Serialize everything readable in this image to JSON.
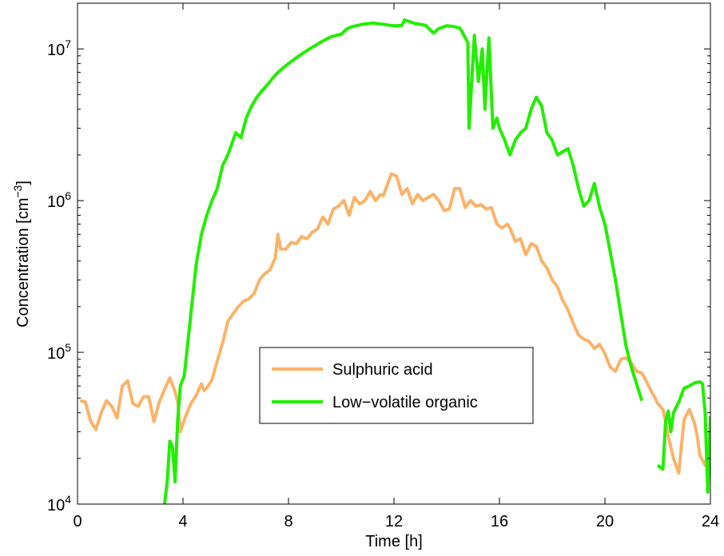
{
  "chart_data": {
    "type": "line",
    "title": "",
    "xlabel": "Time [h]",
    "ylabel_main": "Concentration [cm",
    "ylabel_sup": "−3",
    "ylabel_close": "]",
    "xlim": [
      0,
      24
    ],
    "ylim": [
      10000,
      20000000
    ],
    "yscale": "log",
    "grid": false,
    "legend_position": "center",
    "x_ticks": [
      0,
      4,
      8,
      12,
      16,
      20,
      24
    ],
    "x_tick_labels": [
      "0",
      "4",
      "8",
      "12",
      "16",
      "20",
      "24"
    ],
    "y_ticks": [
      10000,
      100000,
      1000000,
      10000000
    ],
    "y_tick_labels": [
      {
        "base": "10",
        "exp": "4"
      },
      {
        "base": "10",
        "exp": "5"
      },
      {
        "base": "10",
        "exp": "6"
      },
      {
        "base": "10",
        "exp": "7"
      }
    ],
    "series": [
      {
        "name": "Sulphuric acid",
        "color": "#fbb36a",
        "points": [
          [
            0.1,
            48000
          ],
          [
            0.3,
            47000
          ],
          [
            0.5,
            35000
          ],
          [
            0.7,
            31000
          ],
          [
            0.9,
            40000
          ],
          [
            1.1,
            48000
          ],
          [
            1.3,
            44000
          ],
          [
            1.5,
            37000
          ],
          [
            1.7,
            60000
          ],
          [
            1.9,
            65000
          ],
          [
            2.1,
            46000
          ],
          [
            2.3,
            44000
          ],
          [
            2.5,
            51000
          ],
          [
            2.7,
            51000
          ],
          [
            2.9,
            35000
          ],
          [
            3.1,
            47000
          ],
          [
            3.3,
            57000
          ],
          [
            3.5,
            68000
          ],
          [
            3.7,
            55000
          ],
          [
            3.8,
            47000
          ],
          [
            3.9,
            30000
          ],
          [
            4.1,
            38000
          ],
          [
            4.3,
            46000
          ],
          [
            4.5,
            52000
          ],
          [
            4.6,
            57000
          ],
          [
            4.7,
            62000
          ],
          [
            4.8,
            56000
          ],
          [
            4.9,
            58000
          ],
          [
            5.1,
            66000
          ],
          [
            5.3,
            88000
          ],
          [
            5.5,
            115000
          ],
          [
            5.7,
            160000
          ],
          [
            5.9,
            180000
          ],
          [
            6.1,
            200000
          ],
          [
            6.3,
            218000
          ],
          [
            6.5,
            225000
          ],
          [
            6.7,
            245000
          ],
          [
            6.9,
            300000
          ],
          [
            7.1,
            330000
          ],
          [
            7.3,
            350000
          ],
          [
            7.5,
            420000
          ],
          [
            7.6,
            600000
          ],
          [
            7.7,
            480000
          ],
          [
            7.9,
            480000
          ],
          [
            8.1,
            530000
          ],
          [
            8.3,
            520000
          ],
          [
            8.5,
            580000
          ],
          [
            8.7,
            560000
          ],
          [
            8.9,
            620000
          ],
          [
            9.1,
            650000
          ],
          [
            9.3,
            780000
          ],
          [
            9.5,
            700000
          ],
          [
            9.7,
            880000
          ],
          [
            9.9,
            920000
          ],
          [
            10.1,
            1000000
          ],
          [
            10.3,
            800000
          ],
          [
            10.5,
            1050000
          ],
          [
            10.7,
            950000
          ],
          [
            10.9,
            1000000
          ],
          [
            11.1,
            1150000
          ],
          [
            11.3,
            1000000
          ],
          [
            11.5,
            1100000
          ],
          [
            11.6,
            1080000
          ],
          [
            11.9,
            1500000
          ],
          [
            12.1,
            1450000
          ],
          [
            12.3,
            1100000
          ],
          [
            12.5,
            1200000
          ],
          [
            12.7,
            950000
          ],
          [
            12.9,
            1100000
          ],
          [
            13.1,
            1000000
          ],
          [
            13.3,
            1050000
          ],
          [
            13.5,
            1100000
          ],
          [
            13.7,
            1000000
          ],
          [
            13.9,
            860000
          ],
          [
            14.1,
            880000
          ],
          [
            14.3,
            1200000
          ],
          [
            14.5,
            1200000
          ],
          [
            14.7,
            900000
          ],
          [
            14.9,
            1000000
          ],
          [
            15.1,
            920000
          ],
          [
            15.3,
            940000
          ],
          [
            15.5,
            880000
          ],
          [
            15.7,
            900000
          ],
          [
            15.9,
            700000
          ],
          [
            16.1,
            660000
          ],
          [
            16.3,
            700000
          ],
          [
            16.4,
            660000
          ],
          [
            16.6,
            540000
          ],
          [
            16.8,
            560000
          ],
          [
            17.0,
            440000
          ],
          [
            17.2,
            520000
          ],
          [
            17.4,
            500000
          ],
          [
            17.6,
            400000
          ],
          [
            17.8,
            360000
          ],
          [
            18.0,
            300000
          ],
          [
            18.2,
            270000
          ],
          [
            18.4,
            220000
          ],
          [
            18.6,
            190000
          ],
          [
            18.8,
            155000
          ],
          [
            19.0,
            130000
          ],
          [
            19.2,
            122000
          ],
          [
            19.4,
            118000
          ],
          [
            19.6,
            106000
          ],
          [
            19.8,
            113000
          ],
          [
            20.0,
            98000
          ],
          [
            20.2,
            80000
          ],
          [
            20.4,
            75000
          ],
          [
            20.6,
            90000
          ],
          [
            20.8,
            92000
          ],
          [
            21.0,
            85000
          ],
          [
            21.2,
            75000
          ],
          [
            21.4,
            73000
          ],
          [
            21.5,
            68000
          ],
          [
            21.7,
            58000
          ],
          [
            21.9,
            50000
          ],
          [
            22.0,
            46000
          ],
          [
            22.2,
            42000
          ],
          [
            22.3,
            35000
          ],
          [
            22.4,
            28000
          ],
          [
            22.6,
            20000
          ],
          [
            22.8,
            16000
          ],
          [
            23.0,
            36000
          ],
          [
            23.2,
            42000
          ],
          [
            23.4,
            34000
          ],
          [
            23.5,
            28000
          ],
          [
            23.6,
            21000
          ],
          [
            23.8,
            18000
          ],
          [
            23.95,
            24000
          ]
        ]
      },
      {
        "name": "Low−volatile organic",
        "color": "#22ee00",
        "segments": [
          [
            [
              3.3,
              10000
            ],
            [
              3.4,
              14000
            ],
            [
              3.5,
              26000
            ],
            [
              3.6,
              24000
            ],
            [
              3.7,
              14000
            ],
            [
              3.8,
              36000
            ],
            [
              3.9,
              60000
            ],
            [
              4.05,
              70000
            ],
            [
              4.3,
              180000
            ],
            [
              4.5,
              380000
            ],
            [
              4.7,
              600000
            ],
            [
              4.9,
              800000
            ],
            [
              5.1,
              1000000
            ],
            [
              5.3,
              1200000
            ],
            [
              5.5,
              1700000
            ],
            [
              5.7,
              2000000
            ],
            [
              5.9,
              2500000
            ],
            [
              6.0,
              2800000
            ],
            [
              6.2,
              2600000
            ],
            [
              6.4,
              3500000
            ],
            [
              6.6,
              4200000
            ],
            [
              6.8,
              4800000
            ],
            [
              7.0,
              5300000
            ],
            [
              7.2,
              5800000
            ],
            [
              7.4,
              6400000
            ],
            [
              7.6,
              7000000
            ],
            [
              7.8,
              7500000
            ],
            [
              8.0,
              8000000
            ],
            [
              8.4,
              9000000
            ],
            [
              8.8,
              10000000
            ],
            [
              9.2,
              11000000
            ],
            [
              9.6,
              12000000
            ],
            [
              10.0,
              12500000
            ],
            [
              10.2,
              13500000
            ],
            [
              10.4,
              14000000
            ],
            [
              10.8,
              14500000
            ],
            [
              11.2,
              14800000
            ],
            [
              11.6,
              14500000
            ],
            [
              12.0,
              14200000
            ],
            [
              12.3,
              14300000
            ],
            [
              12.4,
              15500000
            ],
            [
              12.8,
              14700000
            ],
            [
              13.2,
              14300000
            ],
            [
              13.5,
              12700000
            ],
            [
              13.7,
              13600000
            ],
            [
              14.0,
              14200000
            ],
            [
              14.3,
              14000000
            ],
            [
              14.5,
              13700000
            ],
            [
              14.6,
              12800000
            ],
            [
              14.8,
              11000000
            ],
            [
              14.85,
              3000000
            ],
            [
              15.05,
              12300000
            ],
            [
              15.2,
              6100000
            ],
            [
              15.35,
              10000000
            ],
            [
              15.45,
              4000000
            ],
            [
              15.6,
              11800000
            ],
            [
              15.75,
              3000000
            ],
            [
              15.9,
              3500000
            ],
            [
              16.0,
              3000000
            ],
            [
              16.2,
              2500000
            ],
            [
              16.4,
              2000000
            ],
            [
              16.6,
              2500000
            ],
            [
              16.8,
              2800000
            ],
            [
              17.0,
              3000000
            ],
            [
              17.2,
              4000000
            ],
            [
              17.4,
              4800000
            ],
            [
              17.6,
              4200000
            ],
            [
              17.8,
              2800000
            ],
            [
              18.0,
              2500000
            ],
            [
              18.2,
              2000000
            ],
            [
              18.4,
              2100000
            ],
            [
              18.6,
              2200000
            ],
            [
              18.8,
              1700000
            ],
            [
              19.0,
              1200000
            ],
            [
              19.2,
              920000
            ],
            [
              19.4,
              1000000
            ],
            [
              19.6,
              1300000
            ],
            [
              19.8,
              900000
            ],
            [
              20.0,
              700000
            ],
            [
              20.2,
              460000
            ],
            [
              20.4,
              300000
            ],
            [
              20.6,
              180000
            ],
            [
              20.8,
              110000
            ],
            [
              21.0,
              80000
            ],
            [
              21.2,
              62000
            ],
            [
              21.4,
              48000
            ]
          ],
          [
            [
              22.0,
              18000
            ],
            [
              22.2,
              17000
            ],
            [
              22.3,
              35000
            ],
            [
              22.4,
              41000
            ],
            [
              22.5,
              30000
            ],
            [
              22.6,
              40000
            ],
            [
              22.8,
              47000
            ],
            [
              23.0,
              58000
            ],
            [
              23.2,
              60000
            ],
            [
              23.4,
              63000
            ],
            [
              23.6,
              64000
            ],
            [
              23.7,
              62000
            ],
            [
              23.8,
              40000
            ],
            [
              23.9,
              12000
            ],
            [
              24.0,
              38000
            ]
          ]
        ]
      }
    ]
  }
}
